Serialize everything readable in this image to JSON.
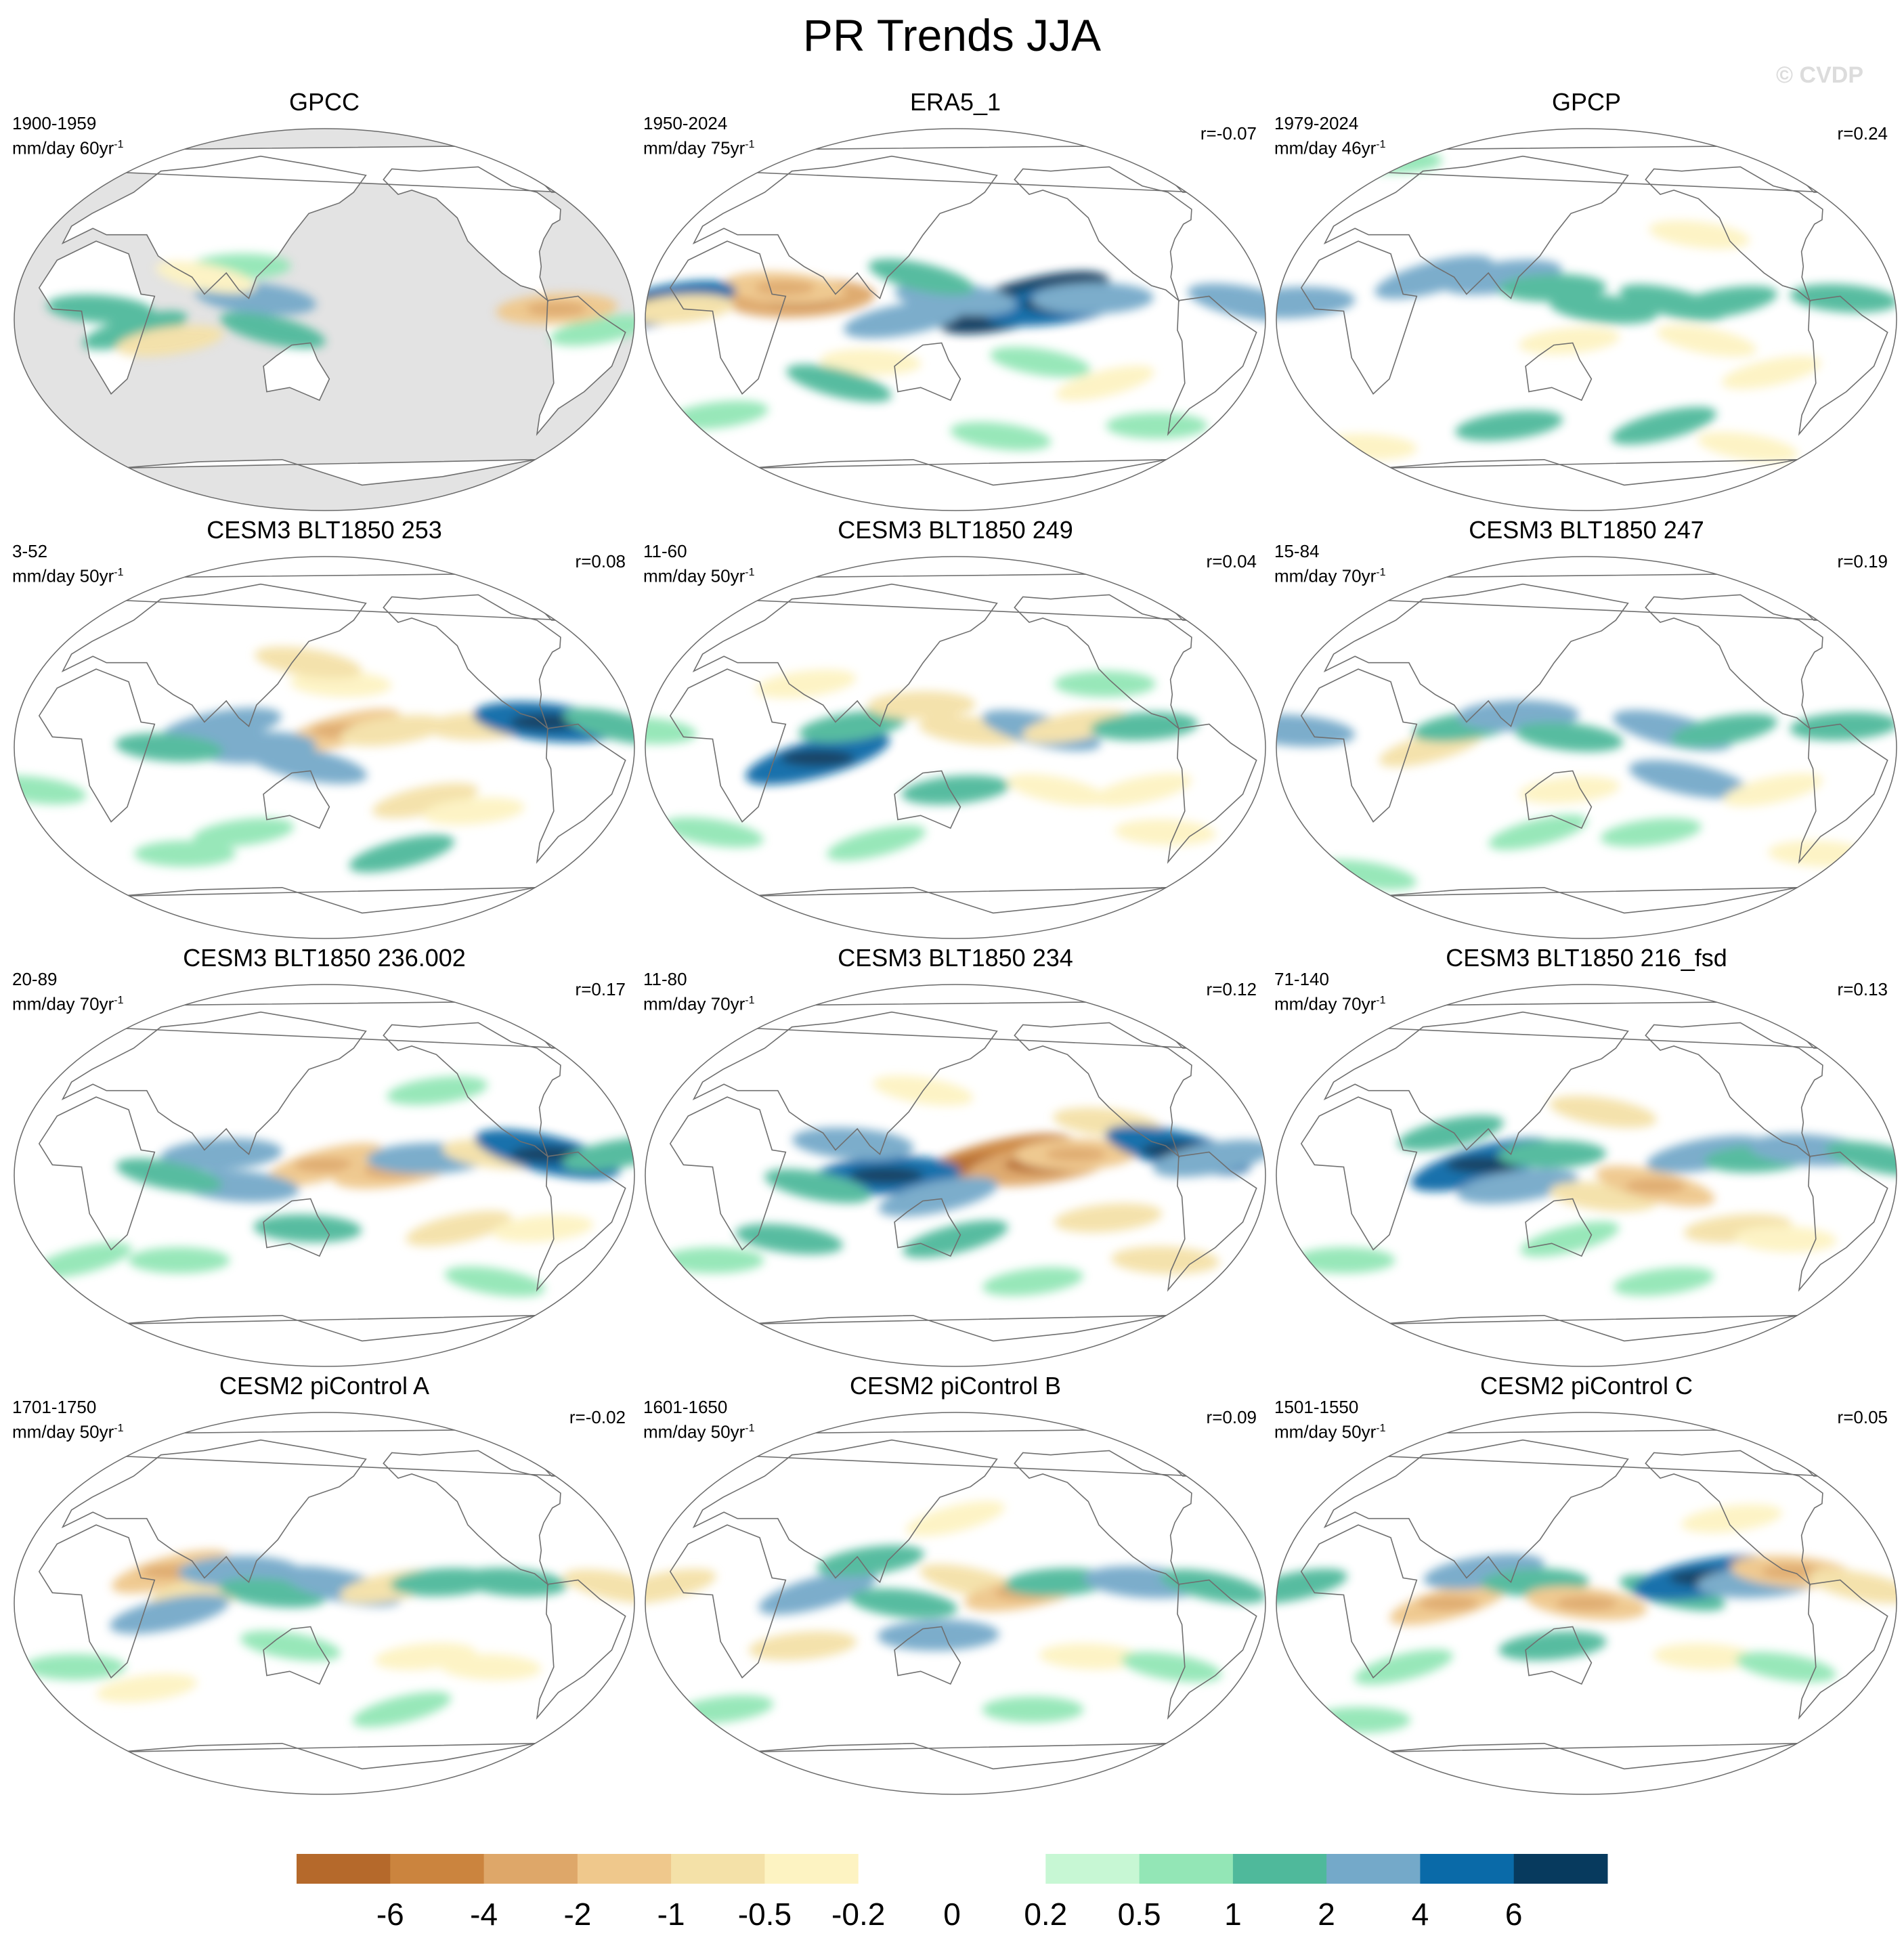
{
  "title": "PR Trends JJA",
  "watermark": "© CVDP",
  "chart_data": {
    "type": "heatmap",
    "title": "PR Trends JJA",
    "projection": "Robinson (Pacific-centred)",
    "panels": [
      {
        "title": "GPCC",
        "period": "1900-1959",
        "units": "mm/day 60yr",
        "units_exp": "-1",
        "r": "",
        "masked_ocean": true,
        "features": [
          [
            40,
            -5,
            1.0
          ],
          [
            60,
            -10,
            -1.0
          ],
          [
            100,
            25,
            0.5
          ],
          [
            110,
            10,
            2.0
          ],
          [
            120,
            -5,
            1.0
          ],
          [
            -50,
            -5,
            0.5
          ],
          [
            -75,
            5,
            -2.0
          ],
          [
            20,
            5,
            1.0
          ],
          [
            80,
            20,
            -0.5
          ]
        ]
      },
      {
        "title": "ERA5_1",
        "period": "1950-2024",
        "units": "mm/day 75yr",
        "units_exp": "-1",
        "r": "r=-0.07",
        "masked_ocean": false,
        "features": [
          [
            -170,
            8,
            6.0
          ],
          [
            -150,
            7,
            4.0
          ],
          [
            -130,
            10,
            2.0
          ],
          [
            150,
            10,
            2.0
          ],
          [
            130,
            20,
            1.0
          ],
          [
            120,
            0,
            2.0
          ],
          [
            60,
            10,
            -4.0
          ],
          [
            50,
            15,
            -2.0
          ],
          [
            -40,
            8,
            2.0
          ],
          [
            -20,
            7,
            4.0
          ],
          [
            -10,
            5,
            -1.0
          ],
          [
            100,
            -20,
            -0.5
          ],
          [
            -160,
            -20,
            0.5
          ],
          [
            -120,
            -30,
            -0.5
          ],
          [
            0,
            -45,
            0.5
          ],
          [
            -80,
            -50,
            0.5
          ],
          [
            180,
            -55,
            0.5
          ],
          [
            80,
            -30,
            1.0
          ]
        ]
      },
      {
        "title": "GPCP",
        "period": "1979-2024",
        "units": "mm/day 46yr",
        "units_exp": "-1",
        "r": "r=0.24",
        "masked_ocean": false,
        "features": [
          [
            60,
            20,
            2.0
          ],
          [
            100,
            20,
            2.0
          ],
          [
            130,
            15,
            1.0
          ],
          [
            160,
            5,
            1.0
          ],
          [
            -160,
            8,
            1.0
          ],
          [
            -130,
            8,
            1.0
          ],
          [
            -20,
            8,
            2.0
          ],
          [
            -60,
            10,
            1.0
          ],
          [
            -140,
            -10,
            -0.5
          ],
          [
            -100,
            -25,
            -0.5
          ],
          [
            140,
            -10,
            -0.5
          ],
          [
            0,
            -60,
            -0.5
          ],
          [
            -100,
            -60,
            -0.5
          ],
          [
            -160,
            -50,
            1.0
          ],
          [
            100,
            -50,
            1.0
          ],
          [
            0,
            75,
            0.5
          ],
          [
            -140,
            40,
            -0.5
          ]
        ]
      },
      {
        "title": "CESM3 BLT1850 253",
        "period": "3-52",
        "units": "mm/day 50yr",
        "units_exp": "-1",
        "r": "r=0.08",
        "masked_ocean": false,
        "features": [
          [
            160,
            8,
            -2.0
          ],
          [
            -170,
            8,
            -1.0
          ],
          [
            -120,
            10,
            -1.0
          ],
          [
            -80,
            12,
            4.0
          ],
          [
            -40,
            10,
            1.0
          ],
          [
            90,
            10,
            2.0
          ],
          [
            110,
            0,
            2.0
          ],
          [
            60,
            0,
            1.0
          ],
          [
            140,
            -8,
            2.0
          ],
          [
            -150,
            -25,
            -1.0
          ],
          [
            -120,
            -30,
            -0.5
          ],
          [
            160,
            30,
            -0.5
          ],
          [
            140,
            40,
            -1.0
          ],
          [
            -160,
            -50,
            1.0
          ],
          [
            100,
            -40,
            0.5
          ],
          [
            60,
            -50,
            0.5
          ],
          [
            -20,
            -20,
            0.5
          ]
        ]
      },
      {
        "title": "CESM3 BLT1850 249",
        "period": "11-60",
        "units": "mm/day 50yr",
        "units_exp": "-1",
        "r": "r=0.04",
        "masked_ocean": false,
        "features": [
          [
            70,
            -5,
            4.0
          ],
          [
            90,
            10,
            1.0
          ],
          [
            130,
            20,
            -1.0
          ],
          [
            160,
            8,
            -1.0
          ],
          [
            -160,
            8,
            2.0
          ],
          [
            -140,
            10,
            -1.0
          ],
          [
            -100,
            10,
            1.0
          ],
          [
            -30,
            8,
            0.5
          ],
          [
            -150,
            -20,
            -0.5
          ],
          [
            -100,
            -20,
            -0.5
          ],
          [
            150,
            -20,
            1.0
          ],
          [
            -80,
            -40,
            -0.5
          ],
          [
            0,
            -40,
            0.5
          ],
          [
            100,
            -45,
            0.5
          ],
          [
            60,
            30,
            -0.5
          ],
          [
            -120,
            30,
            0.5
          ]
        ]
      },
      {
        "title": "CESM3 BLT1850 247",
        "period": "15-84",
        "units": "mm/day 70yr",
        "units_exp": "-1",
        "r": "r=0.19",
        "masked_ocean": false,
        "features": [
          [
            60,
            0,
            -1.0
          ],
          [
            80,
            10,
            1.0
          ],
          [
            110,
            15,
            2.0
          ],
          [
            140,
            5,
            1.0
          ],
          [
            -160,
            8,
            2.0
          ],
          [
            -130,
            8,
            1.0
          ],
          [
            -60,
            10,
            1.0
          ],
          [
            -20,
            8,
            2.0
          ],
          [
            -150,
            -15,
            2.0
          ],
          [
            -100,
            -20,
            -0.5
          ],
          [
            140,
            -20,
            -0.5
          ],
          [
            -60,
            -50,
            -0.5
          ],
          [
            0,
            -60,
            0.5
          ],
          [
            120,
            -40,
            0.5
          ],
          [
            -170,
            -40,
            0.5
          ]
        ]
      },
      {
        "title": "CESM3 BLT1850 236.002",
        "period": "20-89",
        "units": "mm/day 70yr",
        "units_exp": "-1",
        "r": "r=0.17",
        "masked_ocean": false,
        "features": [
          [
            150,
            5,
            -2.0
          ],
          [
            -170,
            2,
            -2.0
          ],
          [
            -150,
            8,
            2.0
          ],
          [
            -110,
            10,
            -1.0
          ],
          [
            -80,
            10,
            4.0
          ],
          [
            -40,
            10,
            1.0
          ],
          [
            90,
            10,
            2.0
          ],
          [
            100,
            -5,
            2.0
          ],
          [
            60,
            0,
            1.0
          ],
          [
            -130,
            -25,
            -1.0
          ],
          [
            -80,
            -25,
            -0.5
          ],
          [
            140,
            -25,
            1.0
          ],
          [
            -100,
            -50,
            0.5
          ],
          [
            0,
            -40,
            0.5
          ],
          [
            -140,
            40,
            0.5
          ],
          [
            60,
            -40,
            0.5
          ]
        ]
      },
      {
        "title": "CESM3 BLT1850 234",
        "period": "11-80",
        "units": "mm/day 70yr",
        "units_exp": "-1",
        "r": "r=0.12",
        "masked_ocean": false,
        "features": [
          [
            170,
            5,
            -6.0
          ],
          [
            -160,
            5,
            -4.0
          ],
          [
            -140,
            10,
            -2.0
          ],
          [
            -120,
            25,
            -1.0
          ],
          [
            -80,
            12,
            4.0
          ],
          [
            -60,
            8,
            2.0
          ],
          [
            110,
            0,
            4.0
          ],
          [
            90,
            15,
            2.0
          ],
          [
            70,
            -5,
            1.0
          ],
          [
            140,
            -10,
            2.0
          ],
          [
            -120,
            -20,
            -1.0
          ],
          [
            -80,
            -40,
            -1.0
          ],
          [
            130,
            40,
            -0.5
          ],
          [
            150,
            -30,
            1.0
          ],
          [
            -160,
            -50,
            0.5
          ],
          [
            0,
            -40,
            0.5
          ],
          [
            50,
            -30,
            1.0
          ]
        ]
      },
      {
        "title": "CESM3 BLT1850 216_fsd",
        "period": "71-140",
        "units": "mm/day 70yr",
        "units_exp": "-1",
        "r": "r=0.13",
        "masked_ocean": false,
        "features": [
          [
            90,
            5,
            4.0
          ],
          [
            110,
            -5,
            2.0
          ],
          [
            130,
            10,
            1.0
          ],
          [
            160,
            -10,
            -1.0
          ],
          [
            -170,
            -5,
            -2.0
          ],
          [
            -140,
            10,
            2.0
          ],
          [
            -110,
            8,
            1.0
          ],
          [
            -80,
            12,
            2.0
          ],
          [
            -40,
            8,
            1.0
          ],
          [
            70,
            20,
            1.0
          ],
          [
            -120,
            -25,
            -1.0
          ],
          [
            -90,
            -30,
            -0.5
          ],
          [
            160,
            30,
            -1.0
          ],
          [
            140,
            -30,
            0.5
          ],
          [
            -160,
            -50,
            0.5
          ],
          [
            0,
            -40,
            0.5
          ]
        ]
      },
      {
        "title": "CESM2 piControl A",
        "period": "1701-1750",
        "units": "mm/day 50yr",
        "units_exp": "-1",
        "r": "r=-0.02",
        "masked_ocean": false,
        "features": [
          [
            60,
            15,
            -2.0
          ],
          [
            80,
            5,
            -1.0
          ],
          [
            100,
            15,
            2.0
          ],
          [
            120,
            5,
            1.0
          ],
          [
            160,
            8,
            2.0
          ],
          [
            -170,
            8,
            -1.0
          ],
          [
            -140,
            10,
            1.0
          ],
          [
            -100,
            10,
            1.0
          ],
          [
            -40,
            8,
            -1.0
          ],
          [
            60,
            -5,
            2.0
          ],
          [
            -150,
            -25,
            -0.5
          ],
          [
            -110,
            -30,
            -0.5
          ],
          [
            130,
            -20,
            0.5
          ],
          [
            -160,
            -50,
            0.5
          ],
          [
            40,
            -40,
            -0.5
          ],
          [
            0,
            -30,
            0.5
          ]
        ]
      },
      {
        "title": "CESM2 piControl B",
        "period": "1601-1650",
        "units": "mm/day 50yr",
        "units_exp": "-1",
        "r": "r=0.09",
        "masked_ocean": false,
        "features": [
          [
            70,
            5,
            2.0
          ],
          [
            100,
            20,
            1.0
          ],
          [
            140,
            -15,
            2.0
          ],
          [
            120,
            0,
            1.0
          ],
          [
            160,
            10,
            -1.0
          ],
          [
            -170,
            5,
            -2.0
          ],
          [
            -150,
            10,
            1.0
          ],
          [
            -100,
            10,
            2.0
          ],
          [
            -60,
            8,
            1.0
          ],
          [
            -20,
            8,
            -1.0
          ],
          [
            60,
            -20,
            -1.0
          ],
          [
            -130,
            -25,
            -0.5
          ],
          [
            -80,
            -30,
            0.5
          ],
          [
            150,
            40,
            -0.5
          ],
          [
            0,
            -50,
            0.5
          ],
          [
            -160,
            -50,
            0.5
          ]
        ]
      },
      {
        "title": "CESM2 piControl C",
        "period": "1501-1550",
        "units": "mm/day 50yr",
        "units_exp": "-1",
        "r": "r=0.05",
        "masked_ocean": false,
        "features": [
          [
            70,
            0,
            -2.0
          ],
          [
            90,
            15,
            2.0
          ],
          [
            120,
            10,
            1.0
          ],
          [
            150,
            0,
            -2.0
          ],
          [
            -160,
            5,
            1.0
          ],
          [
            -140,
            12,
            4.0
          ],
          [
            -110,
            10,
            2.0
          ],
          [
            -90,
            15,
            -2.0
          ],
          [
            -50,
            8,
            -1.0
          ],
          [
            -20,
            8,
            1.0
          ],
          [
            130,
            -20,
            1.0
          ],
          [
            -140,
            -25,
            -0.5
          ],
          [
            -90,
            -30,
            0.5
          ],
          [
            40,
            -30,
            0.5
          ],
          [
            -120,
            40,
            -0.5
          ],
          [
            0,
            -55,
            0.5
          ]
        ]
      }
    ],
    "colorbar": {
      "labels": [
        "-6",
        "-4",
        "-2",
        "-1",
        "-0.5",
        "-0.2",
        "0",
        "0.2",
        "0.5",
        "1",
        "2",
        "4",
        "6"
      ],
      "levels": [
        -6,
        -4,
        -2,
        -1,
        -0.5,
        -0.2,
        0,
        0.2,
        0.5,
        1,
        2,
        4,
        6
      ],
      "colors": [
        "#b5692b",
        "#cb843e",
        "#dea769",
        "#efc88c",
        "#f4e1a8",
        "#fdf3c2",
        "#ffffff",
        "#ffffff",
        "#c7f7d4",
        "#93e6b6",
        "#4fb99b",
        "#74a9c9",
        "#0a6aa8",
        "#073a5e"
      ]
    }
  }
}
